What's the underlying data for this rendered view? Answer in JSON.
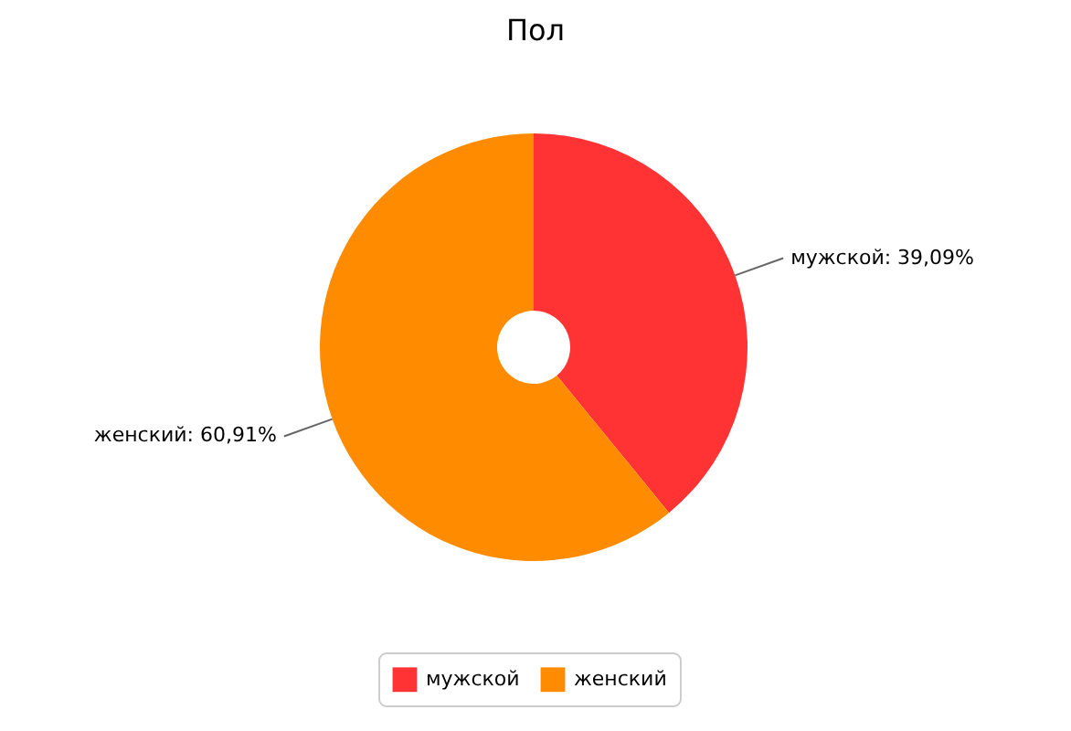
{
  "chart_data": {
    "type": "donut",
    "title": "Пол",
    "categories": [
      "мужской",
      "женский"
    ],
    "values": [
      39.09,
      60.91
    ],
    "colors": [
      "#ff3333",
      "#ff8c00"
    ],
    "value_labels": [
      "мужской: 39,09%",
      "женский: 60,91%"
    ],
    "legend": "bottom"
  }
}
